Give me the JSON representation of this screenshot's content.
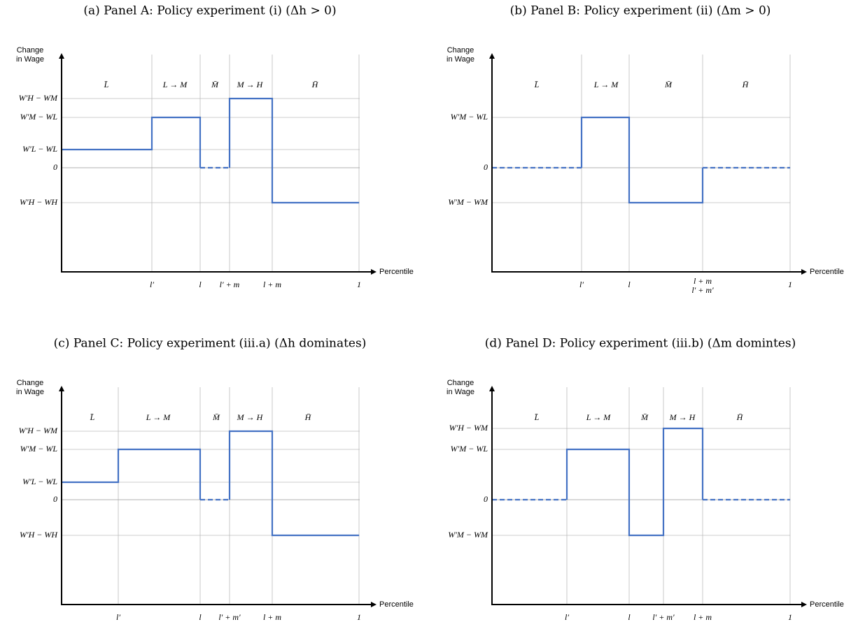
{
  "panels": [
    {
      "caption": "(a) Panel A: Policy experiment (i) (Δh > 0)",
      "y_axis_label": "Change in Wage",
      "x_axis_label": "Percentile",
      "y_ticks": [
        "W′H − WM",
        "W′M − WL",
        "W′L − WL",
        "0",
        "W′H − WH"
      ],
      "x_ticks": [
        "l′",
        "l",
        "l′ + m",
        "l + m",
        "1"
      ],
      "regions": [
        "L̄",
        "L → M",
        "M̄",
        "M → H",
        "H̄"
      ]
    },
    {
      "caption": "(b) Panel B: Policy experiment (ii) (Δm > 0)",
      "y_axis_label": "Change in Wage",
      "x_axis_label": "Percentile",
      "y_ticks": [
        "W′M − WL",
        "0",
        "W′M − WM"
      ],
      "x_ticks": [
        "l′",
        "l",
        "l + m",
        "l′ + m′",
        "1"
      ],
      "regions": [
        "L̄",
        "L → M",
        "M̄",
        "H̄"
      ]
    },
    {
      "caption": "(c) Panel C: Policy experiment (iii.a) (Δh dominates)",
      "y_axis_label": "Change in Wage",
      "x_axis_label": "Percentile",
      "y_ticks": [
        "W′H − WM",
        "W′M − WL",
        "W′L − WL",
        "0",
        "W′H − WH"
      ],
      "x_ticks": [
        "l′",
        "l",
        "l′ + m′",
        "l + m",
        "1"
      ],
      "regions": [
        "L̄",
        "L → M",
        "M̄",
        "M → H",
        "H̄"
      ]
    },
    {
      "caption": "(d) Panel D: Policy experiment (iii.b) (Δm domintes)",
      "y_axis_label": "Change in Wage",
      "x_axis_label": "Percentile",
      "y_ticks": [
        "W′H − WM",
        "W′M − WL",
        "0",
        "W′M − WM"
      ],
      "x_ticks": [
        "l′",
        "l",
        "l′ + m′",
        "l + m",
        "1"
      ],
      "regions": [
        "L̄",
        "L → M",
        "M̄",
        "M → H",
        "H̄"
      ]
    }
  ]
}
